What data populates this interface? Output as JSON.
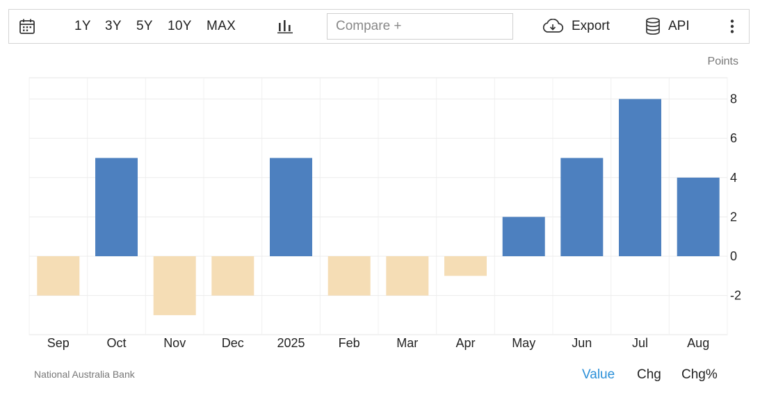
{
  "toolbar": {
    "ranges": [
      "1Y",
      "3Y",
      "5Y",
      "10Y",
      "MAX"
    ],
    "compare_placeholder": "Compare +",
    "export_label": "Export",
    "api_label": "API"
  },
  "chart_data": {
    "type": "bar",
    "unit_label": "Points",
    "categories": [
      "Sep",
      "Oct",
      "Nov",
      "Dec",
      "2025",
      "Feb",
      "Mar",
      "Apr",
      "May",
      "Jun",
      "Jul",
      "Aug"
    ],
    "values": [
      -2,
      5,
      -3,
      -2,
      5,
      -2,
      -2,
      -1,
      2,
      5,
      8,
      4
    ],
    "ylim": [
      -4,
      9
    ],
    "yticks": [
      8,
      6,
      4,
      2,
      0,
      -2
    ],
    "positive_color": "#4d80bf",
    "negative_color": "#f5ddb5",
    "grid": true
  },
  "footer": {
    "source": "National Australia Bank",
    "tabs": [
      "Value",
      "Chg",
      "Chg%"
    ],
    "active_tab": "Value"
  }
}
